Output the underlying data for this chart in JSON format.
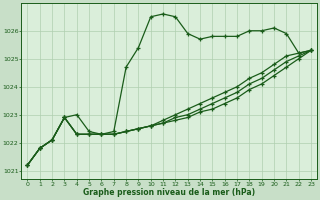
{
  "title": "Graphe pression niveau de la mer (hPa)",
  "background_color": "#c8dfc8",
  "plot_bg_color": "#daeeda",
  "line_color": "#1a5c1a",
  "grid_color": "#b0cfb0",
  "xlim": [
    -0.5,
    23.5
  ],
  "ylim": [
    1020.7,
    1027.0
  ],
  "yticks": [
    1021,
    1022,
    1023,
    1024,
    1025,
    1026
  ],
  "xticks": [
    0,
    1,
    2,
    3,
    4,
    5,
    6,
    7,
    8,
    9,
    10,
    11,
    12,
    13,
    14,
    15,
    16,
    17,
    18,
    19,
    20,
    21,
    22,
    23
  ],
  "series": [
    [
      1021.2,
      1021.8,
      1022.1,
      1022.9,
      1023.0,
      1022.4,
      1022.3,
      1022.4,
      1024.7,
      1025.4,
      1026.5,
      1026.6,
      1026.5,
      1025.9,
      1025.7,
      1025.8,
      1025.8,
      1025.8,
      1026.0,
      1026.0,
      1026.1,
      1025.9,
      1025.2,
      1025.3
    ],
    [
      1021.2,
      1021.8,
      1022.1,
      1022.9,
      1022.3,
      1022.3,
      1022.3,
      1022.3,
      1022.4,
      1022.5,
      1022.6,
      1022.8,
      1023.0,
      1023.2,
      1023.4,
      1023.6,
      1023.8,
      1024.0,
      1024.3,
      1024.5,
      1024.8,
      1025.1,
      1025.2,
      1025.3
    ],
    [
      1021.2,
      1021.8,
      1022.1,
      1022.9,
      1022.3,
      1022.3,
      1022.3,
      1022.3,
      1022.4,
      1022.5,
      1022.6,
      1022.7,
      1022.9,
      1023.0,
      1023.2,
      1023.4,
      1023.6,
      1023.8,
      1024.1,
      1024.3,
      1024.6,
      1024.9,
      1025.1,
      1025.3
    ],
    [
      1021.2,
      1021.8,
      1022.1,
      1022.9,
      1022.3,
      1022.3,
      1022.3,
      1022.3,
      1022.4,
      1022.5,
      1022.6,
      1022.7,
      1022.8,
      1022.9,
      1023.1,
      1023.2,
      1023.4,
      1023.6,
      1023.9,
      1024.1,
      1024.4,
      1024.7,
      1025.0,
      1025.3
    ]
  ],
  "marker_size": 3.5,
  "linewidth": 0.9,
  "tick_fontsize": 4.5,
  "xlabel_fontsize": 5.5
}
